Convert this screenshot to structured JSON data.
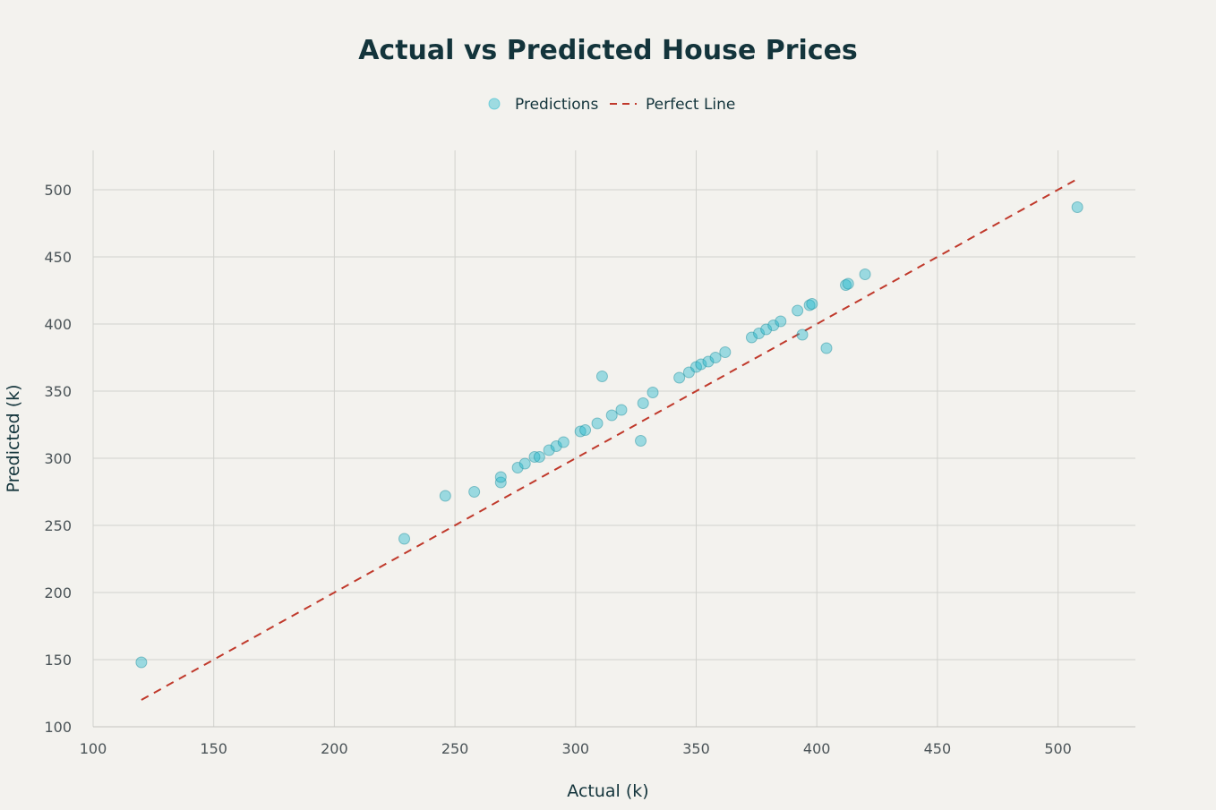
{
  "chart_data": {
    "type": "scatter",
    "title": "Actual vs Predicted House Prices",
    "xlabel": "Actual (k)",
    "ylabel": "Predicted (k)",
    "xlim": [
      100,
      532
    ],
    "ylim": [
      100,
      528
    ],
    "xticks": [
      100,
      150,
      200,
      250,
      300,
      350,
      400,
      450,
      500
    ],
    "yticks": [
      100,
      150,
      200,
      250,
      300,
      350,
      400,
      450,
      500
    ],
    "grid": true,
    "legend_position": "top-center",
    "colors": {
      "background": "#f3f2ee",
      "points": "#1fb8cd",
      "perfect_line": "#c0392b",
      "title": "#13343b"
    },
    "series": [
      {
        "name": "Predictions",
        "kind": "scatter",
        "x": [
          120,
          229,
          246,
          258,
          269,
          269,
          276,
          279,
          283,
          285,
          289,
          292,
          295,
          302,
          304,
          309,
          311,
          315,
          319,
          327,
          328,
          332,
          343,
          347,
          350,
          352,
          355,
          358,
          362,
          373,
          376,
          379,
          382,
          385,
          392,
          394,
          397,
          398,
          404,
          412,
          413,
          420,
          508
        ],
        "y": [
          148,
          240,
          272,
          275,
          282,
          286,
          293,
          296,
          301,
          301,
          306,
          309,
          312,
          320,
          321,
          326,
          361,
          332,
          336,
          313,
          341,
          349,
          360,
          364,
          368,
          370,
          372,
          375,
          379,
          390,
          393,
          396,
          399,
          402,
          410,
          392,
          414,
          415,
          382,
          429,
          430,
          437,
          487
        ]
      },
      {
        "name": "Perfect Line",
        "kind": "line",
        "style": "dashed",
        "x": [
          120,
          508
        ],
        "y": [
          120,
          508
        ]
      }
    ]
  }
}
